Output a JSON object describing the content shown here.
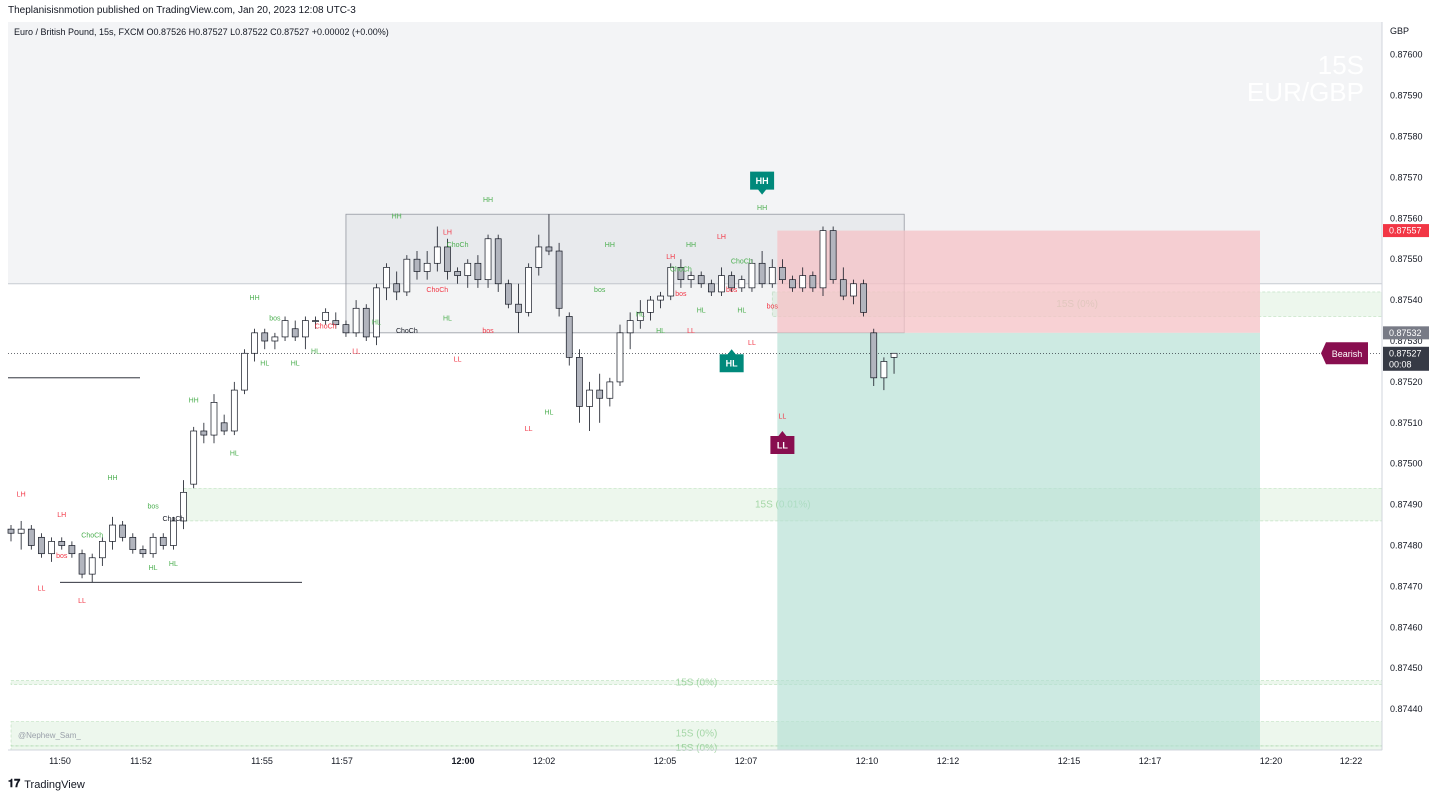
{
  "header": {
    "published": "Theplanisisnmotion published on TradingView.com, Jan 20, 2023 12:08 UTC-3"
  },
  "symbol_line": "Euro / British Pound, 15s, FXCM  O0.87526  H0.87527  L0.87522  C0.87527  +0.00002 (+0.00%)",
  "watermark": {
    "line1": "15S",
    "line2": "EUR/GBP"
  },
  "credit": "@Nephew_Sam_",
  "footer": {
    "logo_glyph": "𝟏𝟕",
    "brand": "TradingView"
  },
  "colors": {
    "bull": "#ffffff",
    "bear": "#b2b5be",
    "wick": "#131722",
    "green_text": "#4caf50",
    "red_text": "#f23645",
    "teal_badge": "#00897b",
    "maroon_badge": "#880e4f",
    "sell_zone": "#f6c1c5",
    "buy_zone": "#b2dfd3"
  },
  "chart_data": {
    "type": "candlestick",
    "currency": "GBP",
    "ylim": [
      0.8743,
      0.87608
    ],
    "y_ticks": [
      "0.87600",
      "0.87590",
      "0.87580",
      "0.87570",
      "0.87560",
      "0.87550",
      "0.87540",
      "0.87530",
      "0.87520",
      "0.87510",
      "0.87500",
      "0.87490",
      "0.87480",
      "0.87470",
      "0.87460",
      "0.87450",
      "0.87440"
    ],
    "x_ticks": [
      {
        "label": "11:50",
        "bold": false
      },
      {
        "label": "11:52",
        "bold": false
      },
      {
        "label": "11:55",
        "bold": false
      },
      {
        "label": "11:57",
        "bold": false
      },
      {
        "label": "12:00",
        "bold": true
      },
      {
        "label": "12:02",
        "bold": false
      },
      {
        "label": "12:05",
        "bold": false
      },
      {
        "label": "12:07",
        "bold": false
      },
      {
        "label": "12:10",
        "bold": false
      },
      {
        "label": "12:12",
        "bold": false
      },
      {
        "label": "12:15",
        "bold": false
      },
      {
        "label": "12:17",
        "bold": false
      },
      {
        "label": "12:20",
        "bold": false
      },
      {
        "label": "12:22",
        "bold": false
      }
    ],
    "price_labels": [
      {
        "text": "0.87557",
        "price": 0.87557,
        "style": "red"
      },
      {
        "text": "0.87532",
        "price": 0.87532,
        "style": "gray"
      },
      {
        "text": "0.87527",
        "price": 0.87527,
        "style": "dark",
        "sub": "00:08"
      }
    ],
    "candles": [
      [
        0.87484,
        0.87485,
        0.87481,
        0.87483
      ],
      [
        0.87483,
        0.87486,
        0.87479,
        0.87484
      ],
      [
        0.87484,
        0.87485,
        0.87479,
        0.8748
      ],
      [
        0.87482,
        0.87483,
        0.87477,
        0.87478
      ],
      [
        0.87478,
        0.87482,
        0.87476,
        0.87481
      ],
      [
        0.87481,
        0.87482,
        0.87479,
        0.8748
      ],
      [
        0.8748,
        0.87481,
        0.87477,
        0.87478
      ],
      [
        0.87478,
        0.87479,
        0.87472,
        0.87473
      ],
      [
        0.87473,
        0.87478,
        0.87471,
        0.87477
      ],
      [
        0.87477,
        0.87482,
        0.87475,
        0.87481
      ],
      [
        0.87481,
        0.87487,
        0.87479,
        0.87485
      ],
      [
        0.87485,
        0.87486,
        0.87481,
        0.87482
      ],
      [
        0.87482,
        0.87483,
        0.87478,
        0.87479
      ],
      [
        0.87479,
        0.8748,
        0.87477,
        0.87478
      ],
      [
        0.87478,
        0.87483,
        0.87477,
        0.87482
      ],
      [
        0.87482,
        0.87483,
        0.87479,
        0.8748
      ],
      [
        0.8748,
        0.87487,
        0.87479,
        0.87486
      ],
      [
        0.87486,
        0.87496,
        0.87484,
        0.87493
      ],
      [
        0.87495,
        0.87509,
        0.87494,
        0.87508
      ],
      [
        0.87508,
        0.8751,
        0.87505,
        0.87507
      ],
      [
        0.87507,
        0.87517,
        0.87505,
        0.87515
      ],
      [
        0.8751,
        0.87512,
        0.87507,
        0.87508
      ],
      [
        0.87508,
        0.8752,
        0.87507,
        0.87518
      ],
      [
        0.87518,
        0.87528,
        0.87517,
        0.87527
      ],
      [
        0.87527,
        0.87533,
        0.87525,
        0.87532
      ],
      [
        0.87532,
        0.87533,
        0.87528,
        0.8753
      ],
      [
        0.8753,
        0.87532,
        0.87528,
        0.87531
      ],
      [
        0.87531,
        0.87536,
        0.8753,
        0.87535
      ],
      [
        0.87533,
        0.87535,
        0.8753,
        0.87531
      ],
      [
        0.87531,
        0.87536,
        0.87528,
        0.87535
      ],
      [
        0.87535,
        0.87536,
        0.87533,
        0.87535
      ],
      [
        0.87535,
        0.87538,
        0.87534,
        0.87537
      ],
      [
        0.87535,
        0.87537,
        0.87533,
        0.87534
      ],
      [
        0.87534,
        0.87535,
        0.87531,
        0.87532
      ],
      [
        0.87532,
        0.8754,
        0.87531,
        0.87538
      ],
      [
        0.87538,
        0.87539,
        0.8753,
        0.87531
      ],
      [
        0.87531,
        0.87544,
        0.87529,
        0.87543
      ],
      [
        0.87543,
        0.87549,
        0.8754,
        0.87548
      ],
      [
        0.87544,
        0.87547,
        0.8754,
        0.87542
      ],
      [
        0.87542,
        0.87551,
        0.87541,
        0.8755
      ],
      [
        0.8755,
        0.87552,
        0.87545,
        0.87547
      ],
      [
        0.87547,
        0.87552,
        0.87545,
        0.87549
      ],
      [
        0.87549,
        0.87558,
        0.87547,
        0.87553
      ],
      [
        0.87553,
        0.87555,
        0.87545,
        0.87547
      ],
      [
        0.87547,
        0.87548,
        0.87544,
        0.87546
      ],
      [
        0.87546,
        0.8755,
        0.87543,
        0.87549
      ],
      [
        0.87549,
        0.87551,
        0.87543,
        0.87545
      ],
      [
        0.87545,
        0.87556,
        0.87543,
        0.87555
      ],
      [
        0.87555,
        0.87556,
        0.87542,
        0.87544
      ],
      [
        0.87544,
        0.87545,
        0.87538,
        0.87539
      ],
      [
        0.87539,
        0.87544,
        0.87532,
        0.87537
      ],
      [
        0.87537,
        0.87549,
        0.87536,
        0.87548
      ],
      [
        0.87548,
        0.87556,
        0.87546,
        0.87553
      ],
      [
        0.87553,
        0.87561,
        0.87551,
        0.87552
      ],
      [
        0.87552,
        0.87554,
        0.87536,
        0.87538
      ],
      [
        0.87536,
        0.87537,
        0.87524,
        0.87526
      ],
      [
        0.87526,
        0.87528,
        0.8751,
        0.87514
      ],
      [
        0.87514,
        0.8752,
        0.87508,
        0.87518
      ],
      [
        0.87518,
        0.87522,
        0.8751,
        0.87516
      ],
      [
        0.87516,
        0.87521,
        0.87514,
        0.8752
      ],
      [
        0.8752,
        0.87534,
        0.87519,
        0.87532
      ],
      [
        0.87532,
        0.87537,
        0.87528,
        0.87535
      ],
      [
        0.87535,
        0.8754,
        0.87533,
        0.87537
      ],
      [
        0.87537,
        0.87541,
        0.87535,
        0.8754
      ],
      [
        0.8754,
        0.87542,
        0.87538,
        0.87541
      ],
      [
        0.87541,
        0.87549,
        0.8754,
        0.87548
      ],
      [
        0.87548,
        0.8755,
        0.87543,
        0.87545
      ],
      [
        0.87545,
        0.87547,
        0.87543,
        0.87546
      ],
      [
        0.87546,
        0.87547,
        0.87543,
        0.87544
      ],
      [
        0.87544,
        0.87545,
        0.87541,
        0.87542
      ],
      [
        0.87542,
        0.87548,
        0.87541,
        0.87546
      ],
      [
        0.87546,
        0.87547,
        0.87542,
        0.87543
      ],
      [
        0.87543,
        0.87546,
        0.87542,
        0.87545
      ],
      [
        0.87543,
        0.8755,
        0.87542,
        0.87549
      ],
      [
        0.87549,
        0.87552,
        0.87543,
        0.87544
      ],
      [
        0.87544,
        0.8755,
        0.87543,
        0.87548
      ],
      [
        0.87548,
        0.8755,
        0.87544,
        0.87545
      ],
      [
        0.87545,
        0.87546,
        0.87542,
        0.87543
      ],
      [
        0.87543,
        0.87548,
        0.87542,
        0.87546
      ],
      [
        0.87546,
        0.87547,
        0.87542,
        0.87543
      ],
      [
        0.87543,
        0.87558,
        0.87541,
        0.87557
      ],
      [
        0.87557,
        0.87558,
        0.87544,
        0.87545
      ],
      [
        0.87545,
        0.87548,
        0.8754,
        0.87541
      ],
      [
        0.87541,
        0.87545,
        0.87539,
        0.87544
      ],
      [
        0.87544,
        0.87545,
        0.87536,
        0.87537
      ],
      [
        0.87532,
        0.87533,
        0.87519,
        0.87521
      ],
      [
        0.87521,
        0.87526,
        0.87518,
        0.87525
      ],
      [
        0.87526,
        0.87527,
        0.87522,
        0.87527
      ]
    ],
    "structure_labels": [
      {
        "text": "LH",
        "color": "red",
        "i": 1,
        "p": 0.87492
      },
      {
        "text": "LH",
        "color": "red",
        "i": 5,
        "p": 0.87487
      },
      {
        "text": "LL",
        "color": "red",
        "i": 3,
        "p": 0.87469
      },
      {
        "text": "LL",
        "color": "red",
        "i": 7,
        "p": 0.87466
      },
      {
        "text": "HH",
        "color": "green",
        "i": 10,
        "p": 0.87496
      },
      {
        "text": "ChoCh",
        "color": "green",
        "i": 8,
        "p": 0.87482
      },
      {
        "text": "bos",
        "color": "red",
        "i": 5,
        "p": 0.87477
      },
      {
        "text": "bos",
        "color": "green",
        "i": 14,
        "p": 0.87489
      },
      {
        "text": "ChoCh",
        "color": "dark",
        "i": 16,
        "p": 0.87486
      },
      {
        "text": "HL",
        "color": "green",
        "i": 14,
        "p": 0.87474
      },
      {
        "text": "HL",
        "color": "green",
        "i": 16,
        "p": 0.87475
      },
      {
        "text": "HL",
        "color": "green",
        "i": 22,
        "p": 0.87502
      },
      {
        "text": "HH",
        "color": "green",
        "i": 18,
        "p": 0.87515
      },
      {
        "text": "HH",
        "color": "green",
        "i": 24,
        "p": 0.8754
      },
      {
        "text": "bos",
        "color": "green",
        "i": 26,
        "p": 0.87535
      },
      {
        "text": "HL",
        "color": "green",
        "i": 25,
        "p": 0.87524
      },
      {
        "text": "HL",
        "color": "green",
        "i": 28,
        "p": 0.87524
      },
      {
        "text": "HL",
        "color": "green",
        "i": 30,
        "p": 0.87527
      },
      {
        "text": "ChoCh",
        "color": "red",
        "i": 31,
        "p": 0.87533
      },
      {
        "text": "LL",
        "color": "red",
        "i": 34,
        "p": 0.87527
      },
      {
        "text": "HL",
        "color": "green",
        "i": 36,
        "p": 0.87534
      },
      {
        "text": "ChoCh",
        "color": "dark",
        "i": 39,
        "p": 0.87532
      },
      {
        "text": "HH",
        "color": "green",
        "i": 38,
        "p": 0.8756
      },
      {
        "text": "LH",
        "color": "red",
        "i": 43,
        "p": 0.87556
      },
      {
        "text": "ChoCh",
        "color": "green",
        "i": 44,
        "p": 0.87553
      },
      {
        "text": "ChoCh",
        "color": "red",
        "i": 42,
        "p": 0.87542
      },
      {
        "text": "HL",
        "color": "green",
        "i": 43,
        "p": 0.87535
      },
      {
        "text": "LL",
        "color": "red",
        "i": 44,
        "p": 0.87525
      },
      {
        "text": "HH",
        "color": "green",
        "i": 47,
        "p": 0.87564
      },
      {
        "text": "bos",
        "color": "red",
        "i": 47,
        "p": 0.87532
      },
      {
        "text": "LL",
        "color": "red",
        "i": 51,
        "p": 0.87508
      },
      {
        "text": "HL",
        "color": "green",
        "i": 53,
        "p": 0.87512
      },
      {
        "text": "bos",
        "color": "green",
        "i": 58,
        "p": 0.87542
      },
      {
        "text": "HH",
        "color": "green",
        "i": 59,
        "p": 0.87553
      },
      {
        "text": "HL",
        "color": "green",
        "i": 62,
        "p": 0.87536
      },
      {
        "text": "HL",
        "color": "green",
        "i": 64,
        "p": 0.87532
      },
      {
        "text": "LH",
        "color": "red",
        "i": 65,
        "p": 0.8755
      },
      {
        "text": "HH",
        "color": "green",
        "i": 67,
        "p": 0.87553
      },
      {
        "text": "ChoCh",
        "color": "green",
        "i": 66,
        "p": 0.87547
      },
      {
        "text": "bos",
        "color": "red",
        "i": 66,
        "p": 0.87541
      },
      {
        "text": "LL",
        "color": "red",
        "i": 67,
        "p": 0.87532
      },
      {
        "text": "HL",
        "color": "green",
        "i": 68,
        "p": 0.87537
      },
      {
        "text": "LH",
        "color": "red",
        "i": 70,
        "p": 0.87555
      },
      {
        "text": "ChoCh",
        "color": "green",
        "i": 72,
        "p": 0.87549
      },
      {
        "text": "bos",
        "color": "red",
        "i": 71,
        "p": 0.87542
      },
      {
        "text": "HL",
        "color": "green",
        "i": 72,
        "p": 0.87537
      },
      {
        "text": "LL",
        "color": "red",
        "i": 73,
        "p": 0.87529
      },
      {
        "text": "HH",
        "color": "green",
        "i": 74,
        "p": 0.87562
      },
      {
        "text": "bos",
        "color": "red",
        "i": 75,
        "p": 0.87538
      },
      {
        "text": "LL",
        "color": "red",
        "i": 76,
        "p": 0.87511
      }
    ],
    "badges": [
      {
        "text": "HH",
        "color": "teal",
        "i": 74,
        "p": 0.87567,
        "dir": "down"
      },
      {
        "text": "HL",
        "color": "teal",
        "i": 71,
        "p": 0.87528,
        "dir": "up"
      },
      {
        "text": "LL",
        "color": "maroon",
        "i": 76,
        "p": 0.87508,
        "dir": "up"
      },
      {
        "text": "Bearish",
        "color": "maroon",
        "price": 0.87527,
        "dir": "left"
      }
    ],
    "zones": [
      {
        "label": "15S (0%)",
        "from_i": 75,
        "top": 0.87542,
        "bottom": 0.87536
      },
      {
        "label": "15S (0.01%)",
        "from_i": 17,
        "top": 0.87494,
        "bottom": 0.87486
      },
      {
        "label": "15S (0%)",
        "from_i": 0,
        "top": 0.87447,
        "bottom": 0.87446
      },
      {
        "label": "15S (0%)",
        "from_i": 0,
        "top": 0.87437,
        "bottom": 0.87431
      },
      {
        "label": "15S (0%)",
        "from_i": 0,
        "top": 0.87431,
        "bottom": 0.8743
      }
    ],
    "position": {
      "entry": 0.87532,
      "stop": 0.87557,
      "target": 0.8743
    },
    "range_box": {
      "top": 0.87561,
      "bottom": 0.87532
    }
  }
}
